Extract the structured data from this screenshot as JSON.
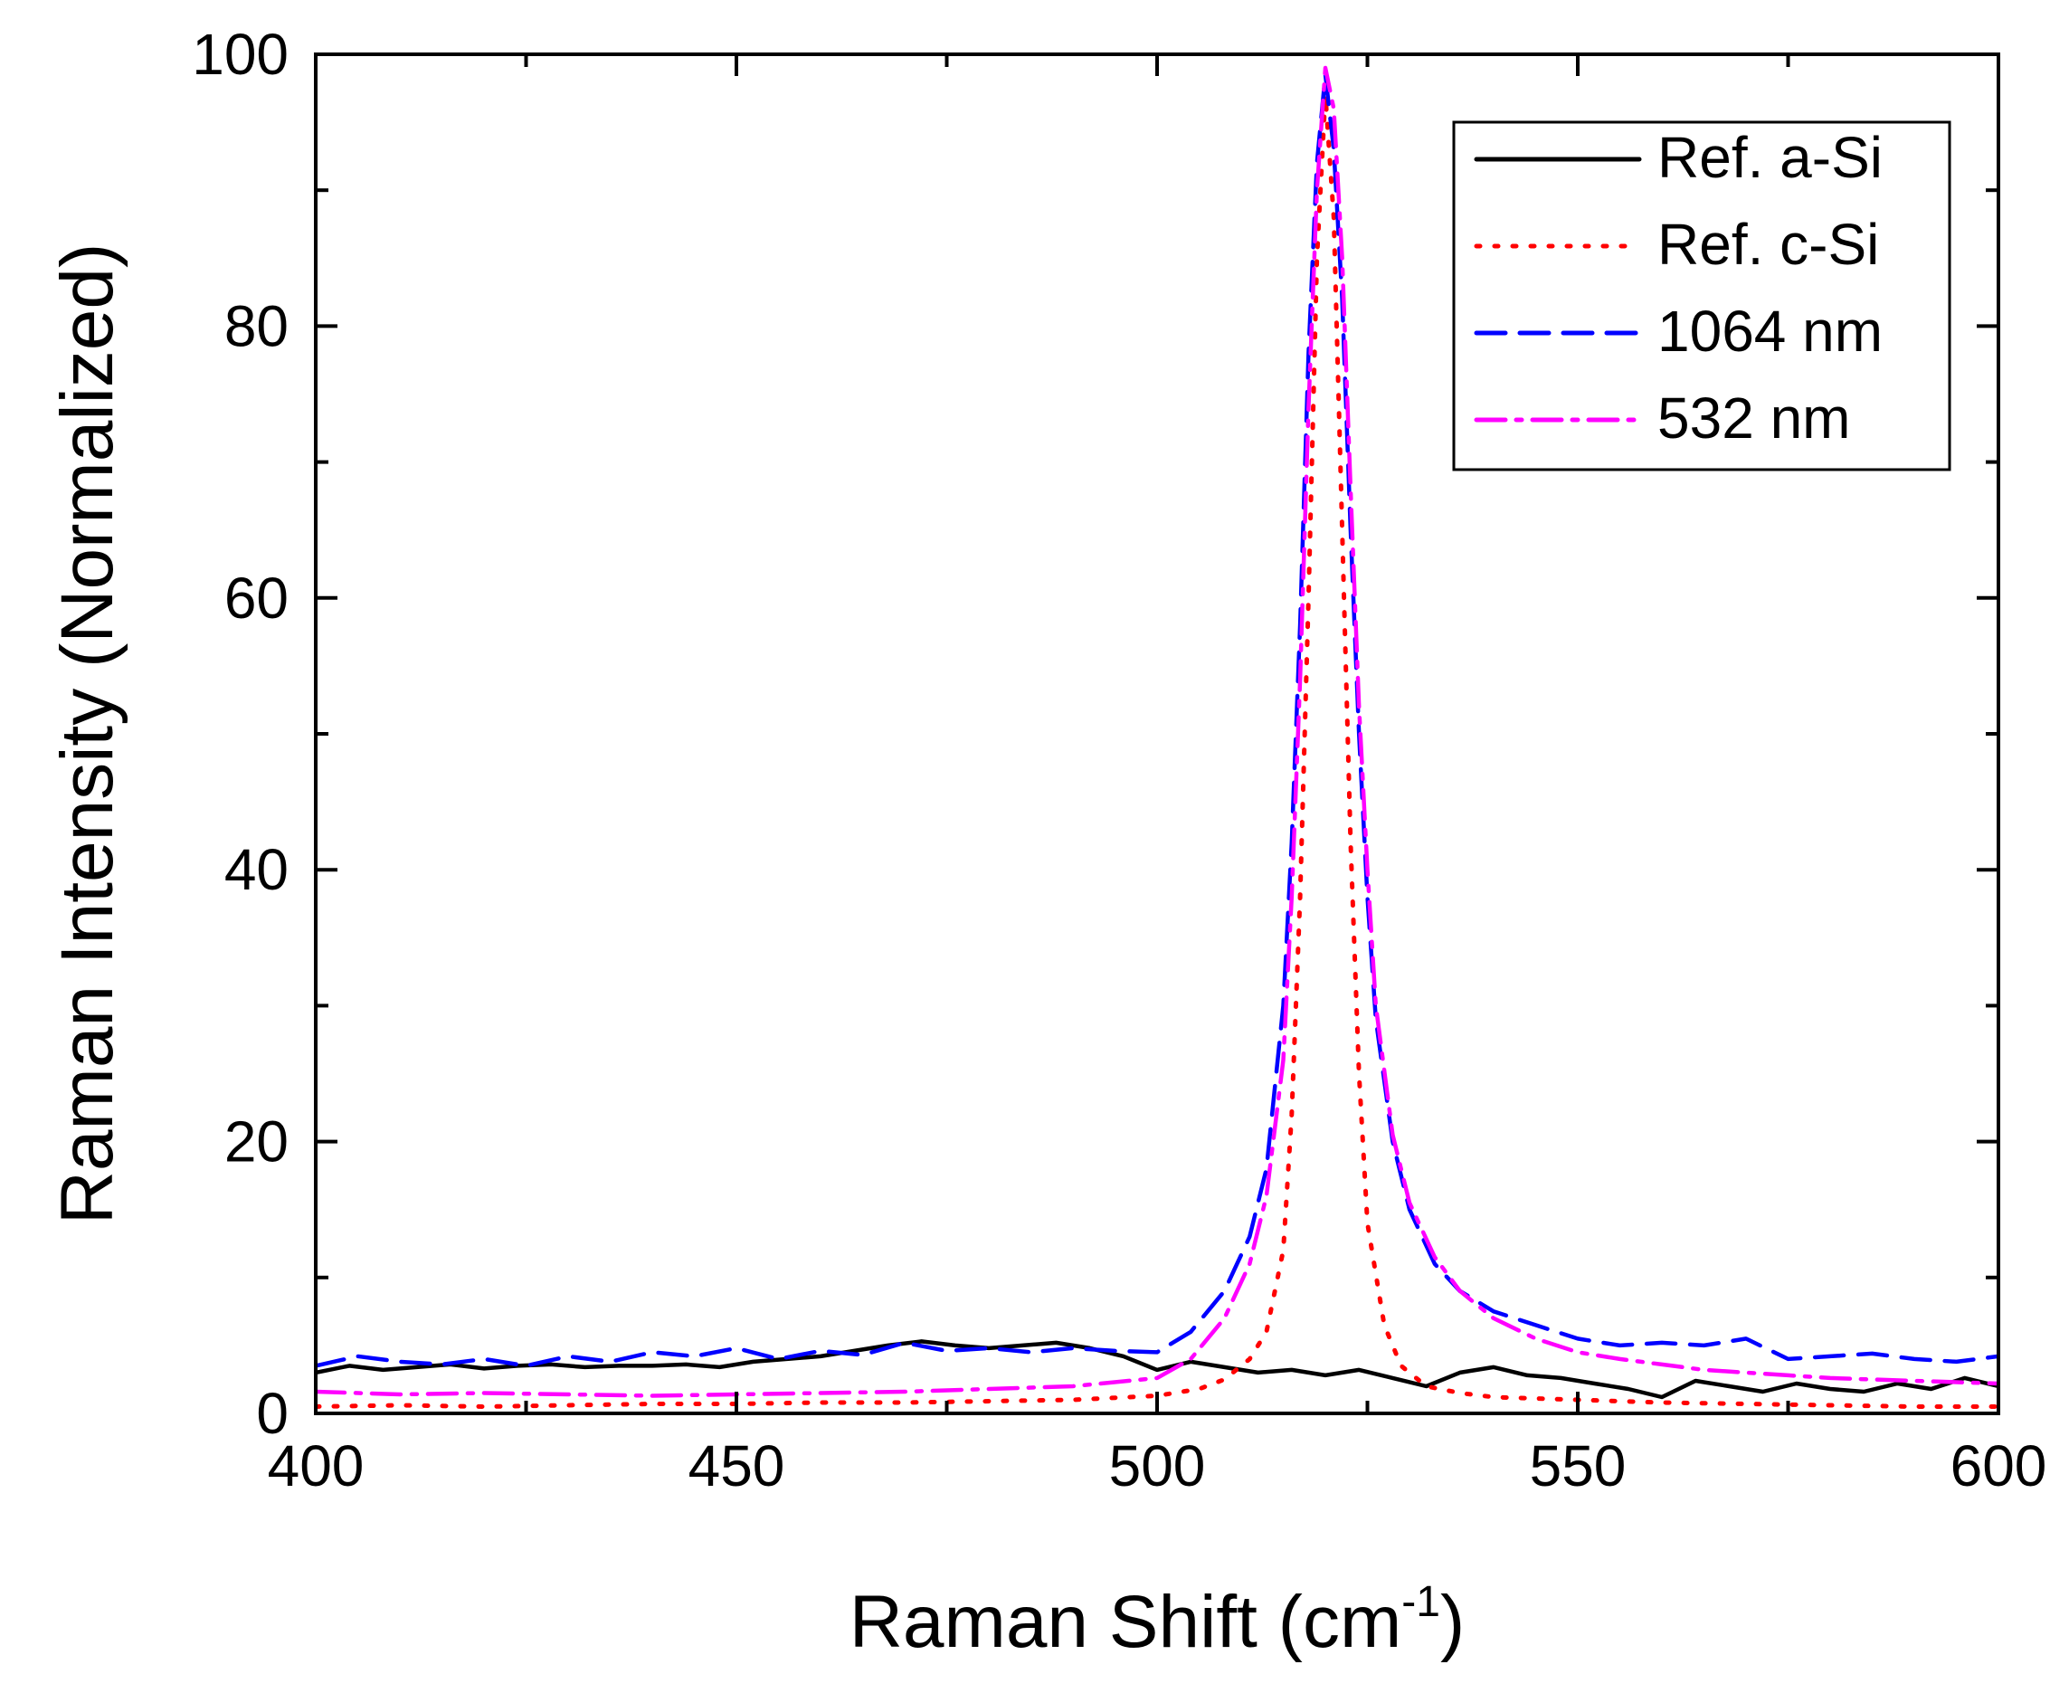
{
  "chart_data": {
    "type": "line",
    "title": "",
    "xlabel": "Raman Shift (cm",
    "xlabel_sup": "-1",
    "xlabel_close": ")",
    "ylabel": "Raman Intensity (Normalized)",
    "xlim": [
      400,
      600
    ],
    "ylim": [
      0,
      100
    ],
    "x_ticks": [
      400,
      450,
      500,
      550,
      600
    ],
    "y_ticks": [
      0,
      20,
      40,
      60,
      80,
      100
    ],
    "x_tick_labels": [
      "400",
      "450",
      "500",
      "550",
      "600"
    ],
    "y_tick_labels": [
      "0",
      "20",
      "40",
      "60",
      "80",
      "100"
    ],
    "grid": false,
    "legend_position": "top-right",
    "series": [
      {
        "name": "Ref. a-Si",
        "color": "#000000",
        "style": "solid",
        "x": [
          400,
          404,
          408,
          412,
          416,
          420,
          424,
          428,
          432,
          436,
          440,
          444,
          448,
          452,
          456,
          460,
          464,
          468,
          472,
          476,
          480,
          484,
          488,
          492,
          496,
          500,
          504,
          508,
          512,
          516,
          520,
          524,
          528,
          532,
          536,
          540,
          544,
          548,
          552,
          556,
          560,
          564,
          568,
          572,
          576,
          580,
          584,
          588,
          592,
          596,
          600
        ],
        "y": [
          3.0,
          3.5,
          3.2,
          3.4,
          3.6,
          3.3,
          3.5,
          3.6,
          3.4,
          3.5,
          3.5,
          3.6,
          3.4,
          3.8,
          4.0,
          4.2,
          4.6,
          5.0,
          5.3,
          5.0,
          4.8,
          5.0,
          5.2,
          4.8,
          4.2,
          3.2,
          3.8,
          3.4,
          3.0,
          3.2,
          2.8,
          3.2,
          2.6,
          2.0,
          3.0,
          3.4,
          2.8,
          2.6,
          2.2,
          1.8,
          1.2,
          2.4,
          2.0,
          1.6,
          2.2,
          1.8,
          1.6,
          2.2,
          1.8,
          2.6,
          2.0
        ]
      },
      {
        "name": "Ref. c-Si",
        "color": "#ff0000",
        "style": "dotted",
        "x": [
          400,
          410,
          420,
          430,
          440,
          450,
          460,
          470,
          480,
          490,
          500,
          505,
          508,
          511,
          513,
          515,
          516,
          517,
          518,
          519,
          520,
          521,
          522,
          523,
          524,
          525,
          527,
          529,
          532,
          536,
          540,
          550,
          560,
          570,
          580,
          590,
          600
        ],
        "y": [
          0.5,
          0.6,
          0.5,
          0.6,
          0.7,
          0.7,
          0.8,
          0.8,
          0.9,
          1.0,
          1.3,
          1.8,
          2.5,
          4.0,
          6.0,
          12.0,
          22.0,
          38.0,
          60.0,
          85.0,
          97.0,
          88.0,
          65.0,
          42.0,
          25.0,
          14.0,
          6.5,
          3.5,
          2.0,
          1.5,
          1.2,
          1.0,
          0.8,
          0.7,
          0.6,
          0.5,
          0.5
        ]
      },
      {
        "name": "1064 nm",
        "color": "#0000ff",
        "style": "dashed",
        "x": [
          400,
          405,
          410,
          415,
          420,
          425,
          430,
          435,
          440,
          445,
          450,
          455,
          460,
          465,
          470,
          475,
          480,
          485,
          490,
          495,
          500,
          504,
          508,
          511,
          513,
          515,
          516,
          517,
          518,
          519,
          520,
          521,
          522,
          523,
          524,
          525,
          526,
          528,
          530,
          533,
          536,
          540,
          545,
          550,
          555,
          560,
          565,
          570,
          575,
          580,
          585,
          590,
          595,
          600
        ],
        "y": [
          3.5,
          4.2,
          3.8,
          3.6,
          4.0,
          3.5,
          4.2,
          3.8,
          4.5,
          4.2,
          4.8,
          4.0,
          4.6,
          4.3,
          5.2,
          4.6,
          4.8,
          4.5,
          4.8,
          4.6,
          4.5,
          6.0,
          9.0,
          13.0,
          18.0,
          30.0,
          42.0,
          58.0,
          78.0,
          92.0,
          98.5,
          93.0,
          82.0,
          65.0,
          50.0,
          38.0,
          29.0,
          20.0,
          15.0,
          11.0,
          9.0,
          7.5,
          6.5,
          5.5,
          5.0,
          5.2,
          5.0,
          5.5,
          4.0,
          4.2,
          4.4,
          4.0,
          3.8,
          4.2
        ]
      },
      {
        "name": "532 nm",
        "color": "#ff00ff",
        "style": "dashdot",
        "x": [
          400,
          410,
          420,
          430,
          440,
          450,
          460,
          470,
          480,
          490,
          500,
          504,
          508,
          511,
          513,
          515,
          516,
          517,
          518,
          519,
          520,
          521,
          522,
          523,
          524,
          525,
          526,
          528,
          530,
          533,
          536,
          540,
          545,
          550,
          555,
          560,
          565,
          570,
          575,
          580,
          585,
          590,
          595,
          600
        ],
        "y": [
          1.6,
          1.4,
          1.5,
          1.4,
          1.3,
          1.4,
          1.5,
          1.6,
          1.8,
          2.0,
          2.6,
          4.0,
          7.0,
          11.0,
          16.0,
          26.0,
          38.0,
          54.0,
          74.0,
          90.0,
          99.0,
          96.0,
          85.0,
          68.0,
          52.0,
          40.0,
          30.0,
          20.5,
          15.5,
          11.5,
          9.0,
          7.0,
          5.5,
          4.5,
          4.0,
          3.6,
          3.2,
          3.0,
          2.8,
          2.6,
          2.5,
          2.4,
          2.3,
          2.2
        ]
      }
    ]
  }
}
